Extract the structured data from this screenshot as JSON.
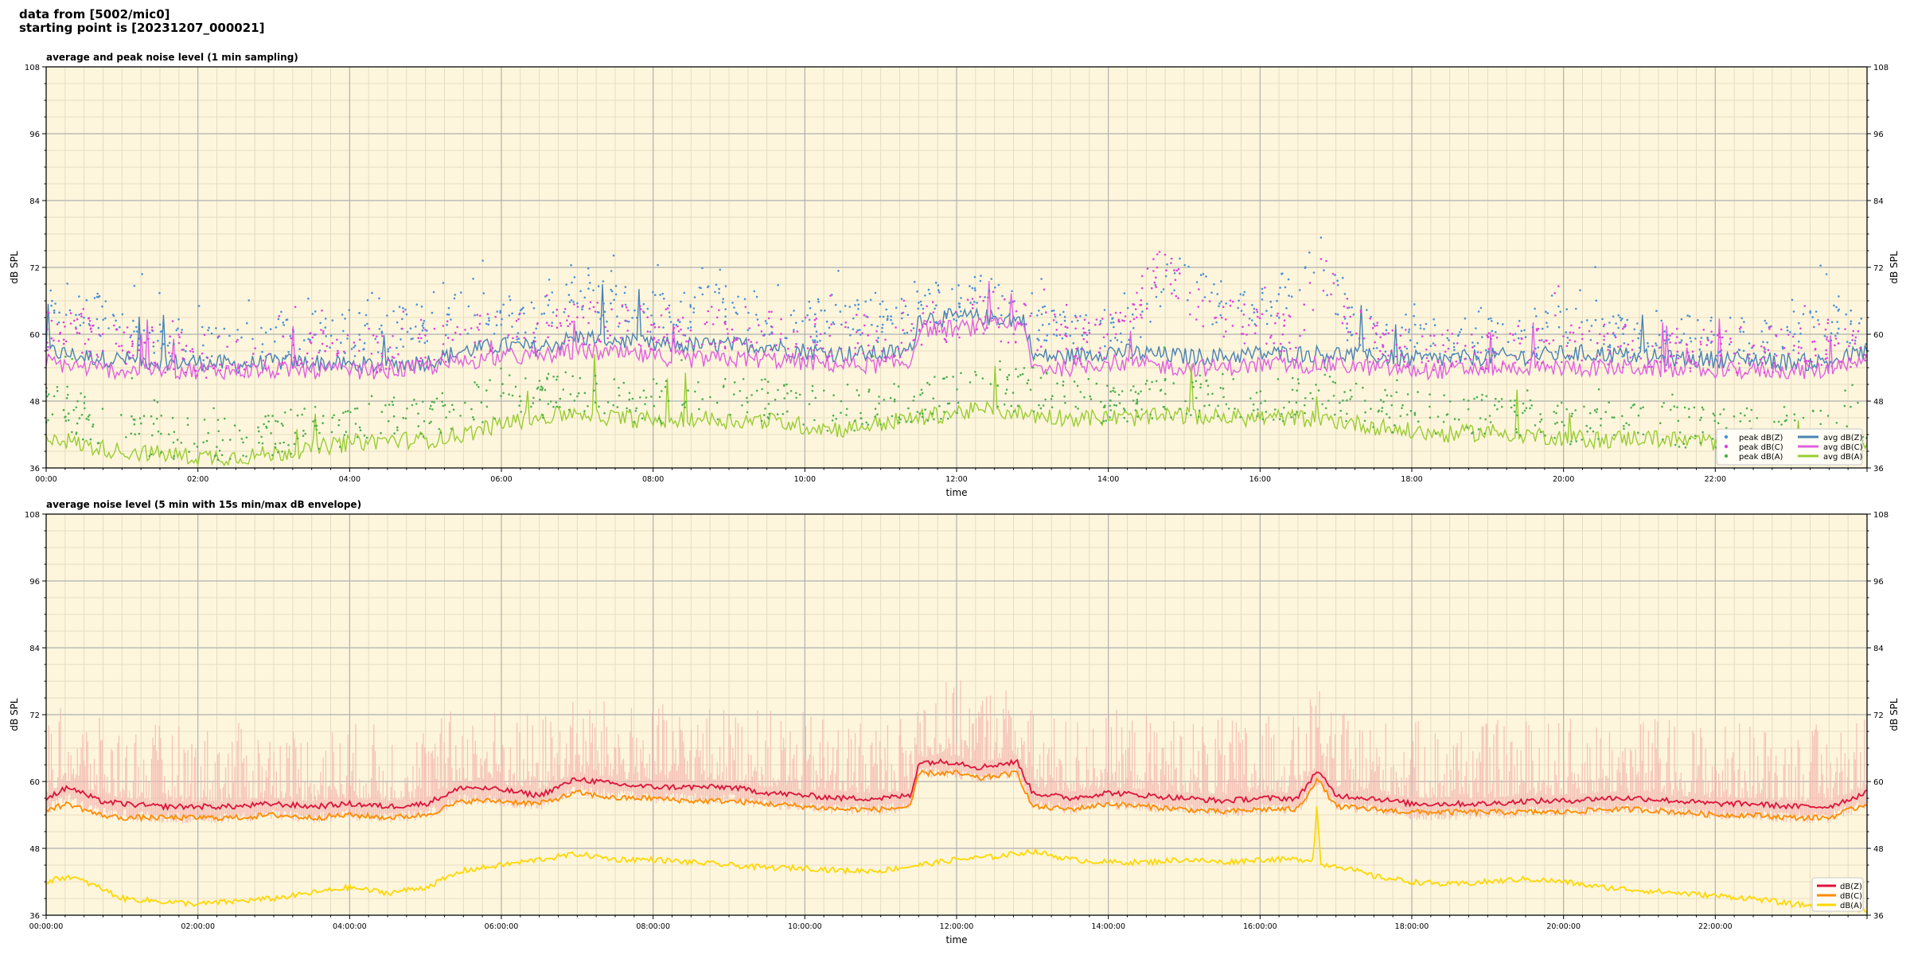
{
  "header": {
    "line1": "data from [5002/mic0]",
    "line2": "starting point is [20231207_000021]"
  },
  "colors": {
    "plot_bg": "#fdf6dc",
    "grid_major": "#b0b0b0",
    "grid_minor": "#e6dcc0",
    "zpeak": "#4a90d9",
    "cpeak": "#e040e0",
    "apeak": "#4caf50",
    "zavg": "#4a82b4",
    "cavg": "#e060e0",
    "aavg": "#9acd32",
    "z5": "#dc143c",
    "c5": "#ff8c00",
    "a5": "#ffd700",
    "envelope": "#f4b6b0"
  },
  "chart_data": [
    {
      "type": "line",
      "title": "average and peak noise level (1 min sampling)",
      "xlabel": "time",
      "ylabel": "dB SPL",
      "ylim": [
        36,
        108
      ],
      "y_ticks": [
        "36",
        "48",
        "60",
        "72",
        "84",
        "96",
        "108"
      ],
      "x_range_hours": [
        0,
        24
      ],
      "x_tick_labels": [
        "00:00",
        "02:00",
        "04:00",
        "06:00",
        "08:00",
        "10:00",
        "12:00",
        "14:00",
        "16:00",
        "18:00",
        "20:00",
        "22:00"
      ],
      "grid": true,
      "legend_position": "lower-right",
      "series": [
        {
          "name": "avg dB(Z)",
          "style": "line",
          "color_key": "zavg",
          "x": [
            0,
            0.5,
            1,
            1.5,
            2,
            2.5,
            3,
            3.5,
            4,
            4.5,
            5,
            5.5,
            6,
            6.5,
            7,
            7.5,
            8,
            8.5,
            9,
            9.5,
            10,
            10.5,
            11,
            11.4,
            11.5,
            12,
            12.5,
            12.9,
            13,
            13.5,
            14,
            14.5,
            15,
            15.5,
            16,
            16.5,
            17,
            17.5,
            18,
            18.5,
            19,
            19.5,
            20,
            20.5,
            21,
            21.5,
            22,
            22.5,
            23,
            23.5,
            24
          ],
          "values": [
            57,
            56,
            55.5,
            55,
            55,
            54.5,
            55,
            55,
            54.5,
            54.5,
            55,
            57,
            58,
            57.5,
            59.5,
            59,
            58,
            58,
            58,
            58,
            57,
            56.5,
            56.5,
            57,
            63,
            63,
            63,
            62.5,
            56,
            56,
            57,
            56.5,
            56,
            56,
            56.5,
            56.5,
            56.5,
            56,
            55.5,
            55.5,
            56,
            56,
            56.5,
            56.5,
            56,
            55.5,
            55.5,
            55.5,
            55,
            55,
            57
          ]
        },
        {
          "name": "avg dB(C)",
          "style": "line",
          "color_key": "cavg",
          "x": [
            0,
            0.5,
            1,
            1.5,
            2,
            2.5,
            3,
            3.5,
            4,
            4.5,
            5,
            5.5,
            6,
            6.5,
            7,
            7.5,
            8,
            8.5,
            9,
            9.5,
            10,
            10.5,
            11,
            11.4,
            11.5,
            12,
            12.5,
            12.9,
            13,
            13.5,
            14,
            14.5,
            15,
            15.5,
            16,
            16.5,
            17,
            17.5,
            18,
            18.5,
            19,
            19.5,
            20,
            20.5,
            21,
            21.5,
            22,
            22.5,
            23,
            23.5,
            24
          ],
          "values": [
            55,
            54,
            53.5,
            53.5,
            53.5,
            53.5,
            53.5,
            53.5,
            53.5,
            53.5,
            54,
            55,
            56,
            56,
            57,
            56.5,
            56,
            55.5,
            55.5,
            55.5,
            55,
            54.5,
            54.5,
            55,
            61,
            61,
            61.5,
            61,
            54,
            54,
            55,
            54.5,
            54,
            54,
            54.5,
            54.5,
            54.5,
            54,
            53.5,
            53.5,
            54,
            54,
            54,
            54,
            54,
            53.5,
            53.5,
            53.5,
            53.5,
            53.5,
            55
          ]
        },
        {
          "name": "avg dB(A)",
          "style": "line",
          "color_key": "aavg",
          "x": [
            0,
            0.5,
            1,
            1.5,
            2,
            2.5,
            3,
            3.5,
            4,
            4.5,
            5,
            5.5,
            6,
            6.5,
            7,
            7.5,
            8,
            8.5,
            9,
            9.5,
            10,
            10.5,
            11,
            11.5,
            12,
            12.5,
            13,
            13.5,
            14,
            14.5,
            15,
            15.5,
            16,
            16.5,
            17,
            17.5,
            18,
            18.5,
            19,
            19.5,
            20,
            20.5,
            21,
            21.5,
            22,
            22.5,
            23,
            23.5,
            24
          ],
          "values": [
            42,
            40,
            39,
            38.5,
            38,
            38,
            38.5,
            39.5,
            40.5,
            41,
            41,
            42,
            44,
            45,
            46,
            45,
            44.5,
            45,
            44.5,
            44.5,
            43.5,
            43,
            44,
            45,
            46,
            46.5,
            45.5,
            45,
            45,
            45,
            45.5,
            45,
            45,
            45,
            44.5,
            43.5,
            42.5,
            42,
            42.5,
            42,
            41.5,
            41,
            41.5,
            41,
            40.5,
            40,
            40,
            39,
            39
          ]
        },
        {
          "name": "peak dB(Z)",
          "style": "dots",
          "color_key": "zpeak",
          "x": [
            0.2,
            0.6,
            1.1,
            1.7,
            2.3,
            2.9,
            3.4,
            4.1,
            4.8,
            5.3,
            5.9,
            6.4,
            6.8,
            7.3,
            7.8,
            8.3,
            8.9,
            9.4,
            9.9,
            10.4,
            11.1,
            11.6,
            12.2,
            12.7,
            13.2,
            13.8,
            14.4,
            14.9,
            15.5,
            16.1,
            16.7,
            17.2,
            17.8,
            18.4,
            19.1,
            19.7,
            20.3,
            20.9,
            21.5,
            22.1,
            22.7,
            23.4
          ],
          "values": [
            66,
            64,
            61,
            59,
            58,
            59,
            60,
            60,
            61,
            63,
            64,
            62,
            68,
            66,
            64,
            63,
            66,
            64,
            62,
            63,
            62,
            66,
            66,
            67,
            61,
            60,
            62,
            72,
            64,
            64,
            75,
            61,
            60,
            59,
            60,
            60,
            61,
            59,
            60,
            59,
            59,
            62
          ]
        },
        {
          "name": "peak dB(C)",
          "style": "dots",
          "color_key": "cpeak",
          "x": [
            0.3,
            0.9,
            1.5,
            2.1,
            2.7,
            3.3,
            3.9,
            4.5,
            5.1,
            5.7,
            6.3,
            6.9,
            7.5,
            8.1,
            8.7,
            9.3,
            9.9,
            10.5,
            11.1,
            11.7,
            12.3,
            12.9,
            13.5,
            14.1,
            14.7,
            15.3,
            15.9,
            16.5,
            16.8,
            17.4,
            18,
            18.6,
            19.2,
            19.8,
            20.4,
            21,
            21.6,
            22.2,
            22.8,
            23.4
          ],
          "values": [
            60,
            59,
            57,
            56,
            56,
            57,
            57,
            57,
            58,
            60,
            60,
            62,
            62,
            61,
            61,
            61,
            59,
            60,
            59,
            62,
            63,
            62,
            58,
            60,
            72,
            63,
            62,
            60,
            71,
            59,
            58,
            57,
            58,
            58,
            58,
            58,
            57,
            57,
            57,
            58
          ]
        },
        {
          "name": "peak dB(A)",
          "style": "dots",
          "color_key": "apeak",
          "x": [
            0.1,
            0.5,
            0.9,
            1.4,
            1.9,
            2.4,
            2.9,
            3.5,
            4,
            4.6,
            5.1,
            5.6,
            6.1,
            6.7,
            7.2,
            7.7,
            8.2,
            8.8,
            9.3,
            9.8,
            10.4,
            10.9,
            11.5,
            12,
            12.5,
            13,
            13.6,
            14.1,
            14.7,
            15.2,
            15.8,
            16.3,
            16.8,
            17.3,
            17.9,
            18.5,
            19,
            19.6,
            20.1,
            20.7,
            21.3,
            21.8,
            22.4,
            23,
            23.6
          ],
          "values": [
            48,
            45,
            43,
            42,
            41,
            41,
            42,
            43,
            44,
            45,
            45,
            47,
            49,
            49,
            50,
            48,
            48,
            48,
            48,
            48,
            46,
            47,
            48,
            49,
            50,
            50,
            48,
            48,
            49,
            49,
            49,
            48,
            51,
            47,
            46,
            45,
            46,
            45,
            44,
            44,
            44,
            43,
            43,
            42,
            44
          ]
        }
      ]
    },
    {
      "type": "line",
      "title": "average noise level (5 min with 15s min/max dB envelope)",
      "xlabel": "time",
      "ylabel": "dB SPL",
      "ylim": [
        36,
        108
      ],
      "y_ticks": [
        "36",
        "48",
        "60",
        "72",
        "84",
        "96",
        "108"
      ],
      "x_range_hours": [
        0,
        24
      ],
      "x_tick_labels": [
        "00:00:00",
        "02:00:00",
        "04:00:00",
        "06:00:00",
        "08:00:00",
        "10:00:00",
        "12:00:00",
        "14:00:00",
        "16:00:00",
        "18:00:00",
        "20:00:00",
        "22:00:00"
      ],
      "grid": true,
      "legend_position": "lower-right",
      "series": [
        {
          "name": "dB(Z)",
          "style": "line",
          "color_key": "z5",
          "x": [
            0,
            0.3,
            0.7,
            1,
            1.5,
            2,
            2.5,
            3,
            3.5,
            4,
            4.5,
            5,
            5.5,
            6,
            6.5,
            7,
            7.5,
            8,
            8.5,
            9,
            9.5,
            10,
            10.5,
            11,
            11.4,
            11.5,
            12,
            12.3,
            12.5,
            12.8,
            13,
            13.5,
            14,
            14.5,
            15,
            15.5,
            16,
            16.5,
            16.75,
            17,
            17.5,
            18,
            18.5,
            19,
            19.5,
            20,
            20.5,
            21,
            21.5,
            22,
            22.5,
            23,
            23.5,
            24
          ],
          "values": [
            57,
            59,
            56.5,
            56,
            55.5,
            55.5,
            55.5,
            56,
            55.5,
            56,
            55.5,
            56,
            59,
            58.5,
            57.5,
            60.5,
            59.5,
            59,
            59,
            59,
            58,
            57.5,
            57,
            57,
            57.5,
            63.5,
            63.5,
            62.5,
            63,
            63.5,
            58,
            57,
            58,
            57.5,
            57,
            56.5,
            57,
            57,
            62,
            57.5,
            57,
            56,
            56,
            56,
            56.5,
            56.5,
            57,
            57,
            56.5,
            56,
            56,
            55.5,
            55.5,
            58
          ]
        },
        {
          "name": "dB(C)",
          "style": "line",
          "color_key": "c5",
          "x": [
            0,
            0.3,
            0.7,
            1,
            1.5,
            2,
            2.5,
            3,
            3.5,
            4,
            4.5,
            5,
            5.5,
            6,
            6.5,
            7,
            7.5,
            8,
            8.5,
            9,
            9.5,
            10,
            10.5,
            11,
            11.4,
            11.5,
            12,
            12.3,
            12.5,
            12.8,
            13,
            13.5,
            14,
            14.5,
            15,
            15.5,
            16,
            16.5,
            16.75,
            17,
            17.5,
            18,
            18.5,
            19,
            19.5,
            20,
            20.5,
            21,
            21.5,
            22,
            22.5,
            23,
            23.5,
            24
          ],
          "values": [
            55,
            56,
            54,
            53.5,
            53.5,
            53.5,
            53.5,
            54,
            53.5,
            54,
            53.5,
            54,
            56.5,
            56.5,
            56,
            58,
            57,
            57,
            56.5,
            56.5,
            56,
            55.5,
            55,
            55,
            55.5,
            61.5,
            61.5,
            60.5,
            61,
            61.5,
            55.5,
            55,
            56,
            55.5,
            55,
            54.5,
            55,
            55,
            60.5,
            55.5,
            55,
            54.5,
            54.5,
            54.5,
            54.5,
            54.5,
            55,
            55,
            54.5,
            54,
            54,
            53.5,
            53.5,
            56
          ]
        },
        {
          "name": "dB(A)",
          "style": "line",
          "color_key": "a5",
          "x": [
            0,
            0.3,
            0.7,
            1,
            1.5,
            2,
            2.5,
            3,
            3.5,
            4,
            4.5,
            5,
            5.5,
            6,
            6.5,
            7,
            7.5,
            8,
            8.5,
            9,
            9.5,
            10,
            10.5,
            11,
            11.5,
            12,
            12.5,
            13,
            13.5,
            14,
            14.5,
            15,
            15.5,
            16,
            16.5,
            16.7,
            16.75,
            16.8,
            17,
            17.5,
            18,
            18.5,
            19,
            19.5,
            20,
            20.5,
            21,
            21.5,
            22,
            22.5,
            23,
            23.5,
            24
          ],
          "values": [
            42,
            43,
            41,
            39,
            38.5,
            38,
            38.5,
            39,
            40,
            41,
            40,
            41,
            44,
            45,
            46,
            47,
            46,
            46,
            45.5,
            45,
            44.5,
            44.5,
            44,
            44,
            45,
            46,
            46.5,
            47.5,
            46,
            45.5,
            45.5,
            46,
            45.5,
            46,
            46,
            46,
            56,
            45,
            45,
            43,
            42,
            41.5,
            42,
            42.5,
            42,
            41,
            40.5,
            40,
            39.5,
            39,
            38,
            37.5,
            37
          ]
        }
      ]
    }
  ]
}
